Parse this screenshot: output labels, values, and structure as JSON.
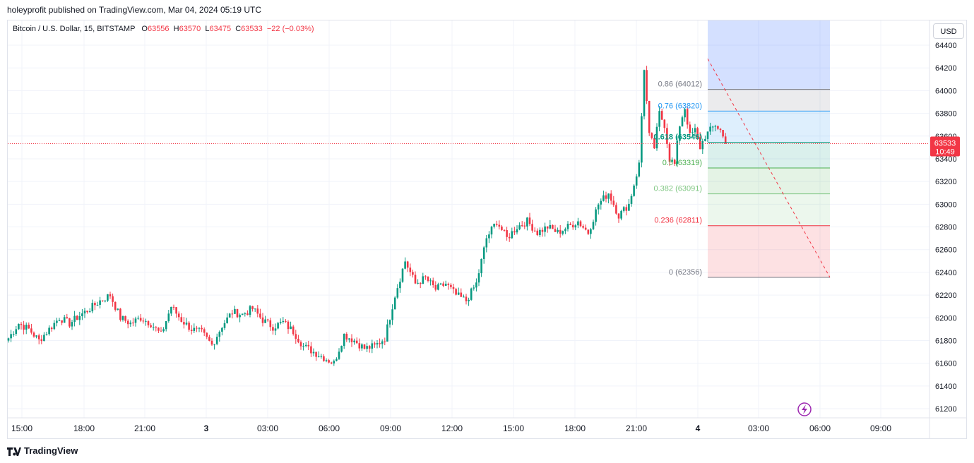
{
  "header": {
    "published": "holeyprofit published on TradingView.com, Mar 04, 2024 05:19 UTC"
  },
  "legend": {
    "symbol": "Bitcoin / U.S. Dollar, 15, BITSTAMP",
    "o_label": "O",
    "o_value": "63556",
    "h_label": "H",
    "h_value": "63570",
    "l_label": "L",
    "l_value": "63475",
    "c_label": "C",
    "c_value": "63533",
    "change": "−22 (−0.03%)"
  },
  "currency_button": "USD",
  "price_tag": {
    "price": "63533",
    "countdown": "10:49",
    "color": "#f23645"
  },
  "footer": {
    "brand": "TradingView"
  },
  "colors": {
    "up": "#089981",
    "down": "#f23645",
    "grid": "#f0f3fa"
  },
  "icons": {
    "lightning": "lightning-icon",
    "logo": "tradingview-logo"
  },
  "chart_data": {
    "type": "candlestick",
    "symbol": "BTCUSD",
    "interval_minutes": 15,
    "ylim": [
      61100,
      64500
    ],
    "yticks": [
      61200,
      61400,
      61600,
      61800,
      62000,
      62200,
      62400,
      62600,
      62800,
      63000,
      63200,
      63400,
      63600,
      63800,
      64000,
      64200,
      64400
    ],
    "xticks": [
      "15:00",
      "18:00",
      "21:00",
      "3",
      "03:00",
      "06:00",
      "09:00",
      "12:00",
      "15:00",
      "18:00",
      "21:00",
      "4",
      "03:00",
      "06:00",
      "09:00"
    ],
    "last_price": 63533,
    "close_path": [
      [
        0,
        61820
      ],
      [
        4,
        61950
      ],
      [
        8,
        61900
      ],
      [
        12,
        61800
      ],
      [
        16,
        61900
      ],
      [
        20,
        62000
      ],
      [
        24,
        61950
      ],
      [
        28,
        62020
      ],
      [
        32,
        62080
      ],
      [
        36,
        62150
      ],
      [
        40,
        62200
      ],
      [
        44,
        62000
      ],
      [
        48,
        61950
      ],
      [
        52,
        62000
      ],
      [
        56,
        61950
      ],
      [
        60,
        61850
      ],
      [
        64,
        62100
      ],
      [
        68,
        61980
      ],
      [
        72,
        61900
      ],
      [
        76,
        61870
      ],
      [
        80,
        61760
      ],
      [
        84,
        61930
      ],
      [
        88,
        62050
      ],
      [
        92,
        62030
      ],
      [
        96,
        62080
      ],
      [
        100,
        61980
      ],
      [
        104,
        61920
      ],
      [
        108,
        61960
      ],
      [
        112,
        61880
      ],
      [
        116,
        61750
      ],
      [
        120,
        61700
      ],
      [
        124,
        61650
      ],
      [
        128,
        61600
      ],
      [
        132,
        61850
      ],
      [
        136,
        61800
      ],
      [
        140,
        61730
      ],
      [
        144,
        61750
      ],
      [
        148,
        61820
      ],
      [
        152,
        62200
      ],
      [
        156,
        62500
      ],
      [
        160,
        62300
      ],
      [
        164,
        62350
      ],
      [
        168,
        62250
      ],
      [
        172,
        62300
      ],
      [
        176,
        62200
      ],
      [
        180,
        62150
      ],
      [
        184,
        62300
      ],
      [
        188,
        62700
      ],
      [
        192,
        62850
      ],
      [
        196,
        62700
      ],
      [
        200,
        62800
      ],
      [
        204,
        62850
      ],
      [
        208,
        62750
      ],
      [
        212,
        62800
      ],
      [
        216,
        62750
      ],
      [
        220,
        62800
      ],
      [
        224,
        62850
      ],
      [
        228,
        62750
      ],
      [
        232,
        63000
      ],
      [
        236,
        63100
      ],
      [
        240,
        62900
      ],
      [
        244,
        63000
      ],
      [
        248,
        63350
      ],
      [
        250,
        64200
      ],
      [
        252,
        63600
      ],
      [
        254,
        63500
      ],
      [
        256,
        63800
      ],
      [
        258,
        63700
      ],
      [
        260,
        63400
      ],
      [
        262,
        63350
      ],
      [
        264,
        63700
      ],
      [
        266,
        63850
      ],
      [
        268,
        63600
      ],
      [
        270,
        63650
      ],
      [
        272,
        63500
      ],
      [
        274,
        63600
      ],
      [
        276,
        63650
      ],
      [
        278,
        63700
      ],
      [
        280,
        63650
      ],
      [
        282,
        63533
      ]
    ],
    "fibonacci": {
      "start": {
        "bar": 250,
        "price": 64280
      },
      "end": {
        "bar": 292,
        "price": 62356
      },
      "levels": [
        {
          "ratio": 0.86,
          "label": "0.86 (64012)",
          "price": 64012,
          "color": "#787b86"
        },
        {
          "ratio": 0.76,
          "label": "0.76 (63820)",
          "price": 63820,
          "color": "#2196f3"
        },
        {
          "ratio": 0.618,
          "label": "0.618 (63546)",
          "price": 63546,
          "color": "#089981"
        },
        {
          "ratio": 0.5,
          "label": "0.5 (63319)",
          "price": 63319,
          "color": "#4caf50"
        },
        {
          "ratio": 0.382,
          "label": "0.382 (63091)",
          "price": 63091,
          "color": "#81c784"
        },
        {
          "ratio": 0.236,
          "label": "0.236 (62811)",
          "price": 62811,
          "color": "#f23645"
        },
        {
          "ratio": 0,
          "label": "0 (62356)",
          "price": 62356,
          "color": "#787b86"
        }
      ]
    }
  }
}
